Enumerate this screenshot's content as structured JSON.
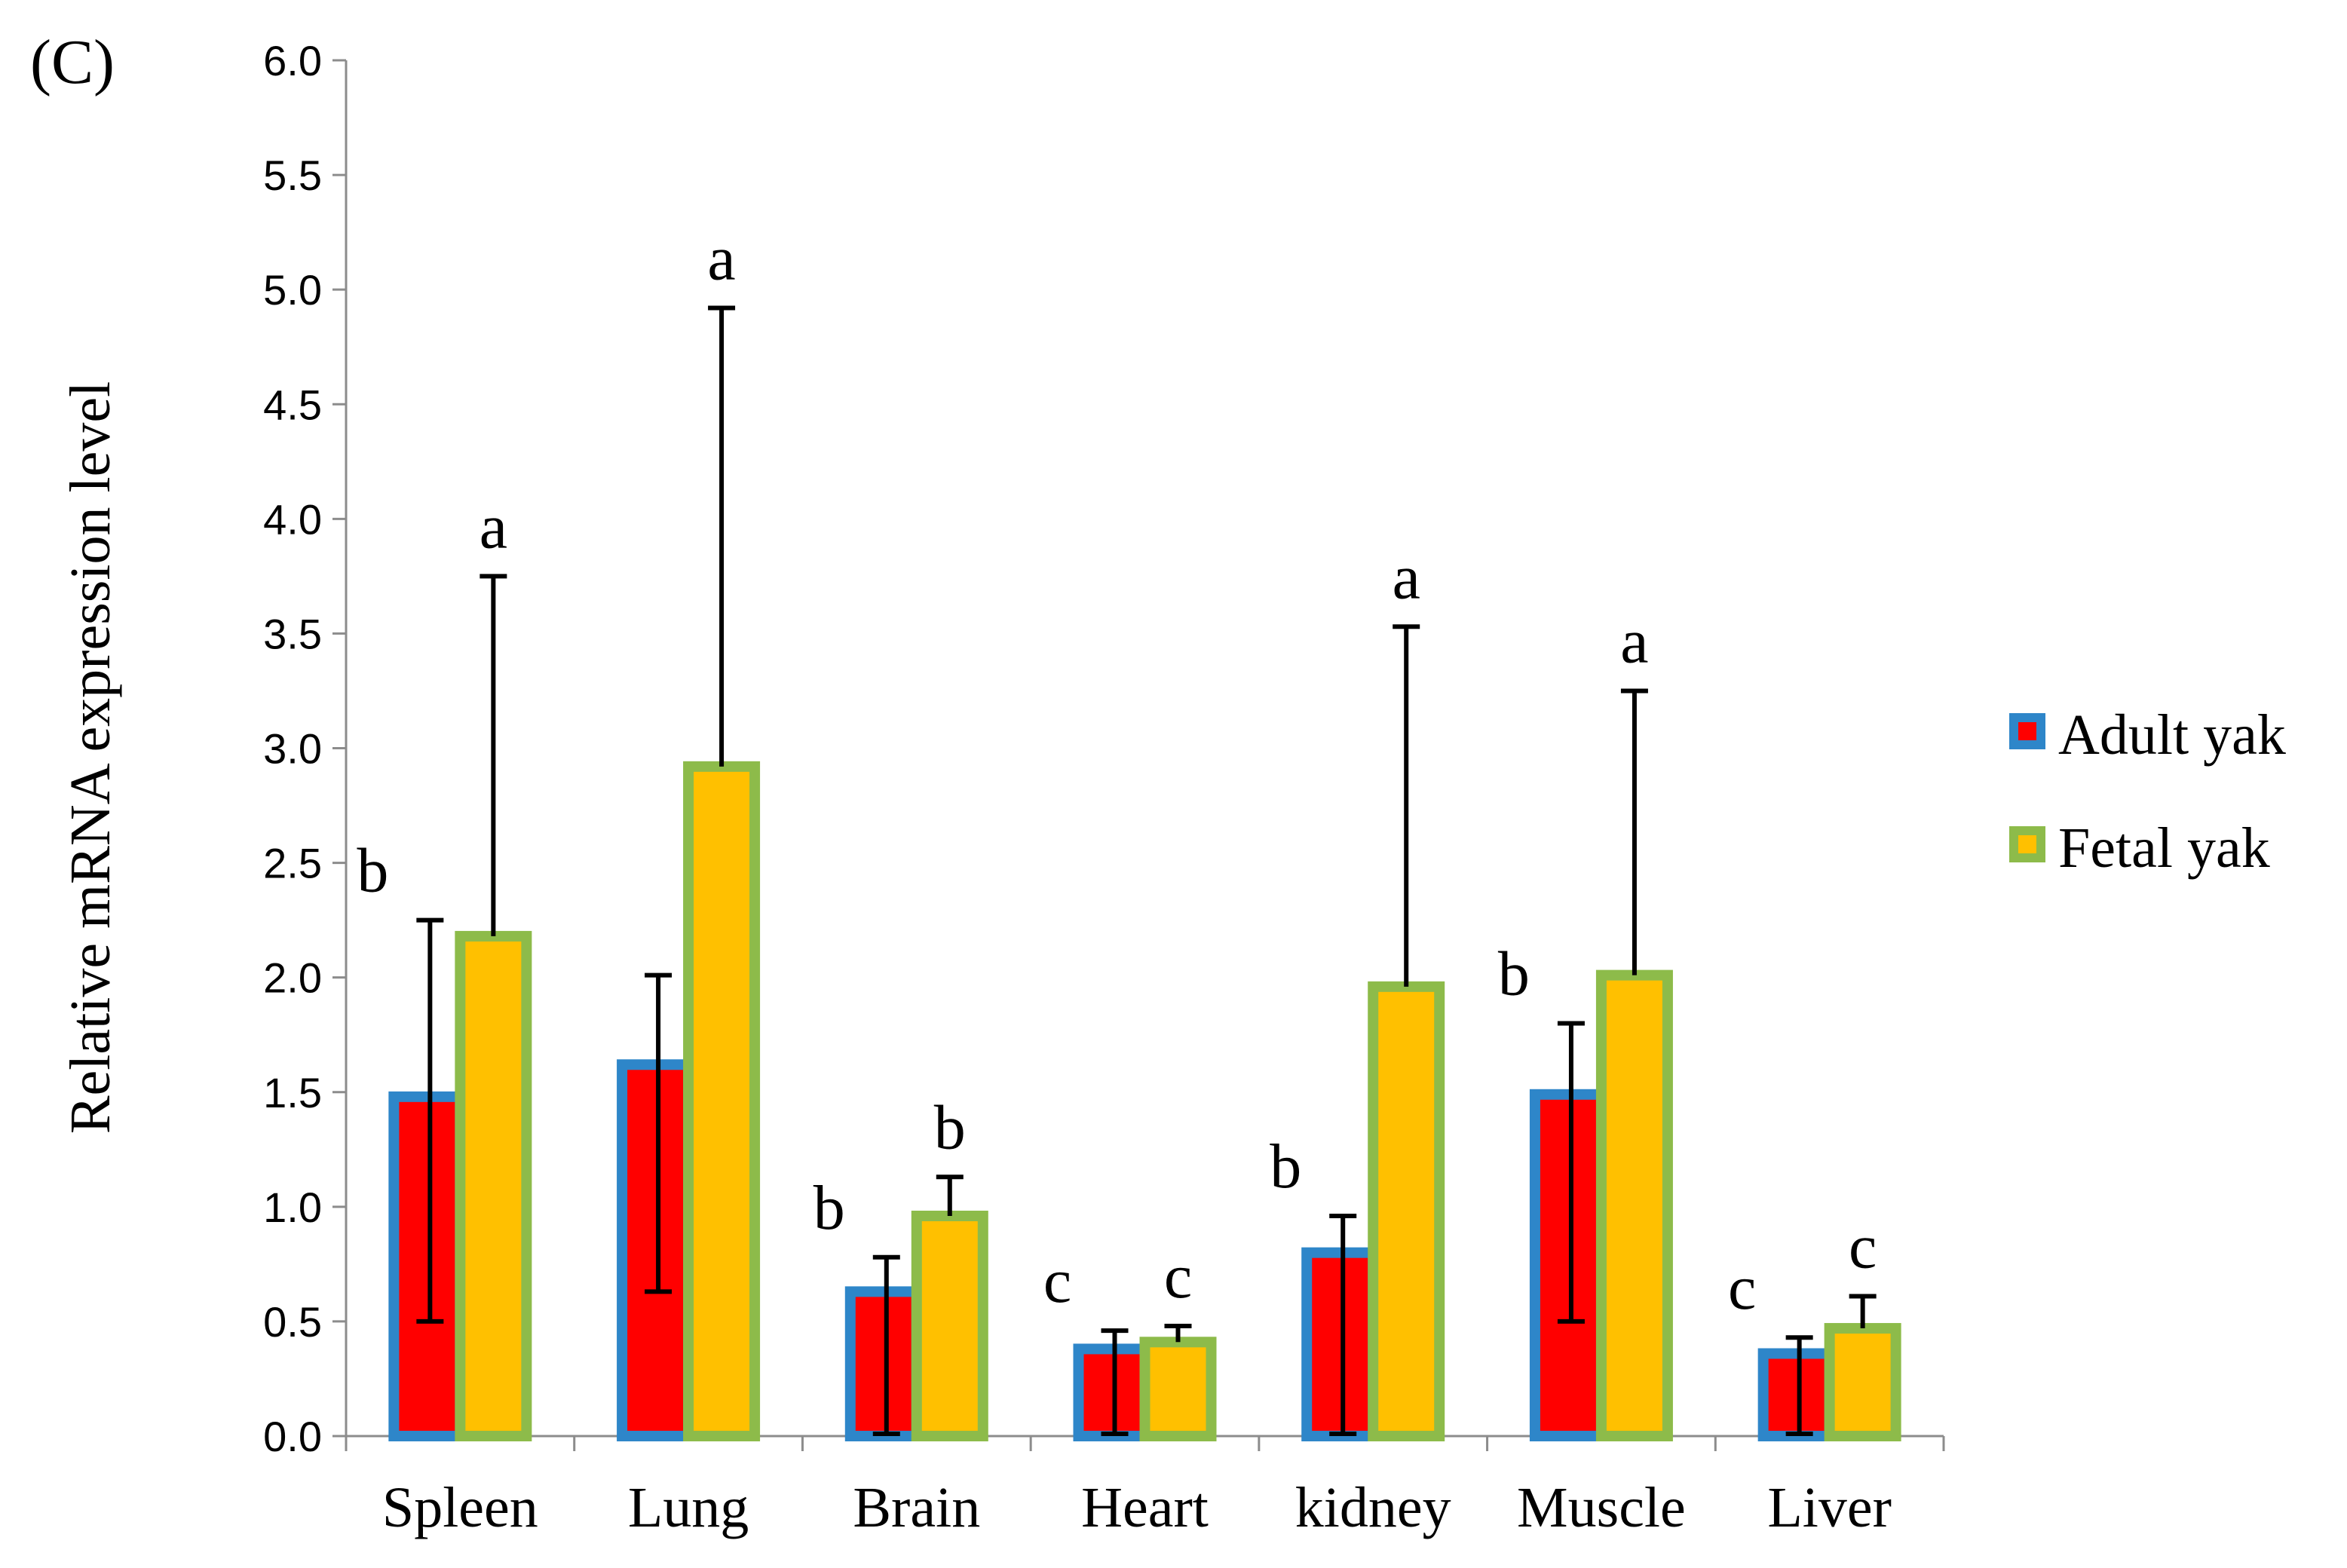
{
  "panel_label": "(C)",
  "colors": {
    "adult_fill": "#FF0000",
    "adult_border": "#2E86C9",
    "fetal_fill": "#FFC000",
    "fetal_border": "#8DBB4A",
    "axis": "#8C8C8C",
    "error_bar": "#000000"
  },
  "chart_data": {
    "type": "bar",
    "title": "",
    "xlabel": "",
    "ylabel": "Relative mRNA expression level",
    "ylim": [
      0,
      6.0
    ],
    "yticks": [
      "0.0",
      "0.5",
      "1.0",
      "1.5",
      "2.0",
      "2.5",
      "3.0",
      "3.5",
      "4.0",
      "4.5",
      "5.0",
      "5.5",
      "6.0"
    ],
    "categories": [
      "Spleen",
      "Lung",
      "Brain",
      "Heart",
      "kidney",
      "Muscle",
      "Liver"
    ],
    "legend_position": "right",
    "series": [
      {
        "name": "Adult yak",
        "values": [
          1.48,
          1.62,
          0.63,
          0.38,
          0.8,
          1.49,
          0.36
        ],
        "error_low": [
          0.5,
          0.63,
          0.01,
          0.01,
          0.01,
          0.5,
          0.01
        ],
        "error_high": [
          2.25,
          2.01,
          0.78,
          0.46,
          0.96,
          1.8,
          0.43
        ],
        "significance": [
          "b",
          "",
          "b",
          "c",
          "b",
          "b",
          "c"
        ]
      },
      {
        "name": "Fetal yak",
        "values": [
          2.18,
          2.92,
          0.96,
          0.41,
          1.96,
          2.01,
          0.47
        ],
        "error_low": [
          2.18,
          2.92,
          0.96,
          0.41,
          1.96,
          2.01,
          0.47
        ],
        "error_high": [
          3.75,
          4.92,
          1.13,
          0.48,
          3.53,
          3.25,
          0.61
        ],
        "significance": [
          "a",
          "a",
          "b",
          "c",
          "a",
          "a",
          "c"
        ]
      }
    ]
  }
}
